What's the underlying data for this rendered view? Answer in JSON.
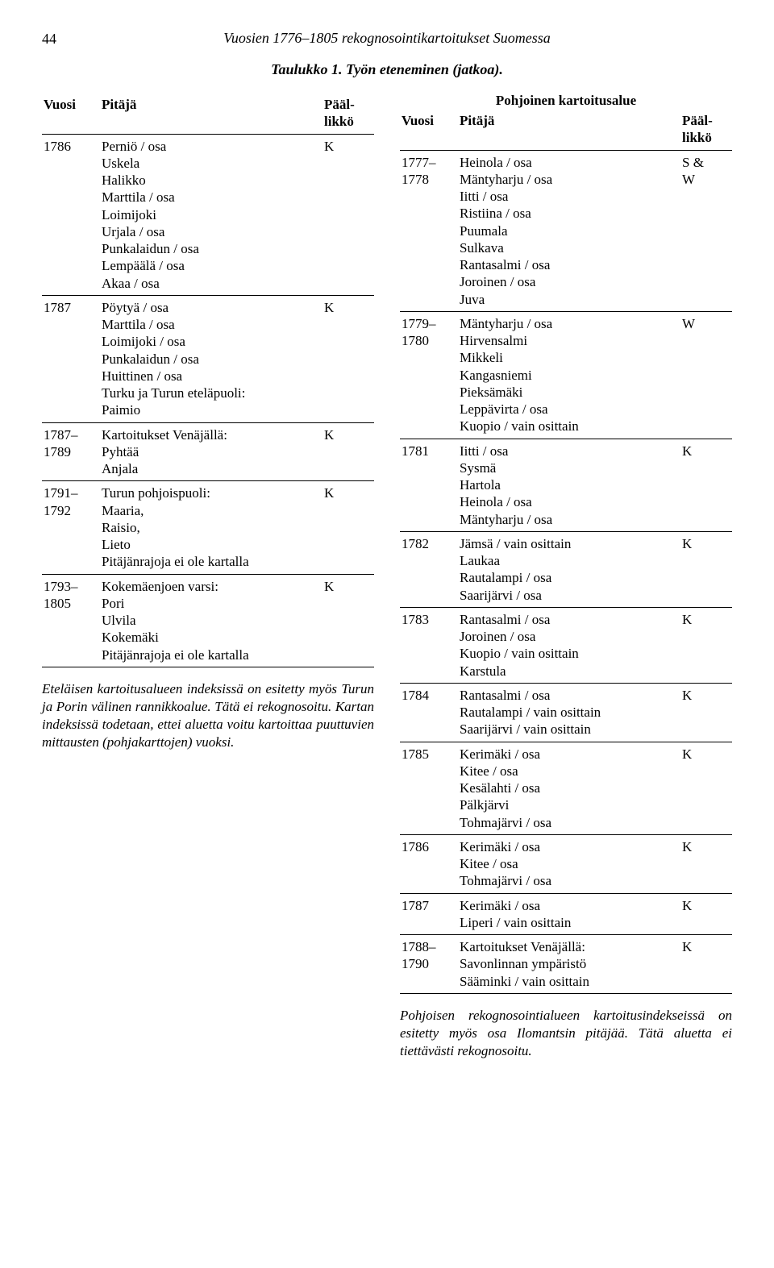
{
  "page_number": "44",
  "running_title": "Vuosien 1776–1805 rekognosointikartoitukset Suomessa",
  "table_caption": "Taulukko 1. Työn eteneminen (jatkoa).",
  "headers": {
    "vuosi": "Vuosi",
    "pitaja": "Pitäjä",
    "paallikko": "Pääl-likkö"
  },
  "left_table": [
    {
      "vuosi": "1786",
      "pitaja": "Perniö / osa\nUskela\nHalikko\nMarttila / osa\nLoimijoki\nUrjala / osa\nPunkalaidun / osa\nLempäälä / osa\nAkaa / osa",
      "paal": "K"
    },
    {
      "vuosi": "1787",
      "pitaja": "Pöytyä / osa\nMarttila / osa\nLoimijoki / osa\nPunkalaidun / osa\nHuittinen / osa\nTurku ja Turun eteläpuoli:\nPaimio",
      "paal": "K"
    },
    {
      "vuosi": "1787–\n1789",
      "pitaja": "Kartoitukset Venäjällä:\nPyhtää\nAnjala",
      "paal": "K"
    },
    {
      "vuosi": "1791–\n1792",
      "pitaja": "Turun pohjoispuoli:\nMaaria,\nRaisio,\nLieto\nPitäjänrajoja ei ole kartalla",
      "paal": "K"
    },
    {
      "vuosi": "1793–\n1805",
      "pitaja": "Kokemäenjoen varsi:\nPori\nUlvila\nKokemäki\nPitäjänrajoja ei ole kartalla",
      "paal": "K"
    }
  ],
  "left_note": "Eteläisen kartoitusalueen indeksissä on esitetty myös Turun ja Porin välinen rannikkoalue. Tätä ei rekognosoitu. Kartan indeksissä todetaan, ettei aluetta voitu kartoittaa puuttuvien mittausten (pohjakarttojen) vuoksi.",
  "right_heading": "Pohjoinen kartoitusalue",
  "right_table": [
    {
      "vuosi": "1777–\n1778",
      "pitaja": "Heinola / osa\nMäntyharju / osa\nIitti / osa\nRistiina / osa\nPuumala\nSulkava\nRantasalmi / osa\nJoroinen / osa\nJuva",
      "paal": "S &\nW"
    },
    {
      "vuosi": "1779–\n1780",
      "pitaja": "Mäntyharju / osa\nHirvensalmi\nMikkeli\nKangasniemi\nPieksämäki\nLeppävirta / osa\nKuopio / vain osittain",
      "paal": "W"
    },
    {
      "vuosi": "1781",
      "pitaja": "Iitti / osa\nSysmä\nHartola\nHeinola / osa\nMäntyharju / osa",
      "paal": "K"
    },
    {
      "vuosi": "1782",
      "pitaja": "Jämsä / vain osittain\nLaukaa\nRautalampi / osa\nSaarijärvi / osa",
      "paal": "K"
    },
    {
      "vuosi": "1783",
      "pitaja": "Rantasalmi / osa\nJoroinen / osa\nKuopio / vain osittain\nKarstula",
      "paal": "K"
    },
    {
      "vuosi": "1784",
      "pitaja": "Rantasalmi / osa\nRautalampi / vain osittain\nSaarijärvi / vain osittain",
      "paal": "K"
    },
    {
      "vuosi": "1785",
      "pitaja": "Kerimäki / osa\nKitee / osa\nKesälahti / osa\nPälkjärvi\nTohmajärvi / osa",
      "paal": "K"
    },
    {
      "vuosi": "1786",
      "pitaja": "Kerimäki / osa\nKitee / osa\nTohmajärvi / osa",
      "paal": "K"
    },
    {
      "vuosi": "1787",
      "pitaja": "Kerimäki / osa\nLiperi / vain osittain",
      "paal": "K"
    },
    {
      "vuosi": "1788–\n1790",
      "pitaja": "Kartoitukset Venäjällä:\nSavonlinnan ympäristö\nSääminki / vain osittain",
      "paal": "K"
    }
  ],
  "right_note": "Pohjoisen rekognosointialueen kartoitusindekseissä on esitetty myös osa Ilomantsin pitäjää. Tätä aluetta ei tiettävästi rekognosoitu."
}
